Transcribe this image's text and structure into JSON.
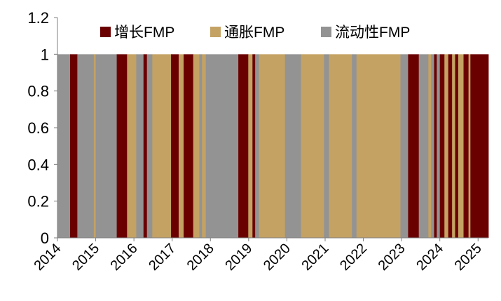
{
  "chart_data": {
    "type": "bar",
    "title": "",
    "xlabel": "",
    "ylabel": "",
    "ylim": [
      0,
      1.2
    ],
    "y_ticks": [
      "0",
      "0.2",
      "0.4",
      "0.6",
      "0.8",
      "1",
      "1.2"
    ],
    "x_range": [
      2014,
      2025.27
    ],
    "x_ticks": [
      "2014",
      "2015",
      "2016",
      "2017",
      "2018",
      "2019",
      "2020",
      "2021",
      "2022",
      "2023",
      "2024",
      "2025"
    ],
    "grid": false,
    "legend_position": "top",
    "legend": [
      {
        "key": "growth",
        "name": "增长FMP",
        "color": "#6b0000"
      },
      {
        "key": "inflation",
        "name": "通胀FMP",
        "color": "#c4a263"
      },
      {
        "key": "liquidity",
        "name": "流动性FMP",
        "color": "#939393"
      }
    ],
    "value": 1,
    "regimes": [
      {
        "start": 2014.0,
        "end": 2014.33,
        "type": "liquidity"
      },
      {
        "start": 2014.33,
        "end": 2014.52,
        "type": "growth"
      },
      {
        "start": 2014.52,
        "end": 2014.95,
        "type": "liquidity"
      },
      {
        "start": 2014.95,
        "end": 2015.0,
        "type": "inflation"
      },
      {
        "start": 2015.0,
        "end": 2015.55,
        "type": "liquidity"
      },
      {
        "start": 2015.55,
        "end": 2015.82,
        "type": "growth"
      },
      {
        "start": 2015.82,
        "end": 2016.06,
        "type": "inflation"
      },
      {
        "start": 2016.06,
        "end": 2016.25,
        "type": "liquidity"
      },
      {
        "start": 2016.25,
        "end": 2016.34,
        "type": "growth"
      },
      {
        "start": 2016.34,
        "end": 2016.48,
        "type": "liquidity"
      },
      {
        "start": 2016.48,
        "end": 2016.97,
        "type": "inflation"
      },
      {
        "start": 2016.97,
        "end": 2017.17,
        "type": "growth"
      },
      {
        "start": 2017.17,
        "end": 2017.3,
        "type": "inflation"
      },
      {
        "start": 2017.3,
        "end": 2017.55,
        "type": "growth"
      },
      {
        "start": 2017.55,
        "end": 2017.71,
        "type": "inflation"
      },
      {
        "start": 2017.71,
        "end": 2017.78,
        "type": "liquidity"
      },
      {
        "start": 2017.78,
        "end": 2017.88,
        "type": "inflation"
      },
      {
        "start": 2017.88,
        "end": 2018.73,
        "type": "liquidity"
      },
      {
        "start": 2018.73,
        "end": 2018.99,
        "type": "growth"
      },
      {
        "start": 2018.99,
        "end": 2019.1,
        "type": "inflation"
      },
      {
        "start": 2019.1,
        "end": 2019.17,
        "type": "growth"
      },
      {
        "start": 2019.17,
        "end": 2019.27,
        "type": "liquidity"
      },
      {
        "start": 2019.27,
        "end": 2019.95,
        "type": "inflation"
      },
      {
        "start": 2019.95,
        "end": 2020.37,
        "type": "liquidity"
      },
      {
        "start": 2020.37,
        "end": 2020.97,
        "type": "inflation"
      },
      {
        "start": 2020.97,
        "end": 2021.1,
        "type": "liquidity"
      },
      {
        "start": 2021.1,
        "end": 2021.7,
        "type": "inflation"
      },
      {
        "start": 2021.7,
        "end": 2021.82,
        "type": "liquidity"
      },
      {
        "start": 2021.82,
        "end": 2022.97,
        "type": "inflation"
      },
      {
        "start": 2022.97,
        "end": 2023.17,
        "type": "liquidity"
      },
      {
        "start": 2023.17,
        "end": 2023.45,
        "type": "growth"
      },
      {
        "start": 2023.45,
        "end": 2023.7,
        "type": "liquidity"
      },
      {
        "start": 2023.7,
        "end": 2023.77,
        "type": "inflation"
      },
      {
        "start": 2023.77,
        "end": 2023.85,
        "type": "liquidity"
      },
      {
        "start": 2023.85,
        "end": 2023.92,
        "type": "growth"
      },
      {
        "start": 2023.92,
        "end": 2024.0,
        "type": "liquidity"
      },
      {
        "start": 2024.0,
        "end": 2024.12,
        "type": "growth"
      },
      {
        "start": 2024.12,
        "end": 2024.22,
        "type": "inflation"
      },
      {
        "start": 2024.22,
        "end": 2024.32,
        "type": "growth"
      },
      {
        "start": 2024.32,
        "end": 2024.4,
        "type": "inflation"
      },
      {
        "start": 2024.4,
        "end": 2024.48,
        "type": "growth"
      },
      {
        "start": 2024.48,
        "end": 2024.62,
        "type": "inflation"
      },
      {
        "start": 2024.62,
        "end": 2024.75,
        "type": "growth"
      },
      {
        "start": 2024.75,
        "end": 2024.8,
        "type": "inflation"
      },
      {
        "start": 2024.8,
        "end": 2025.27,
        "type": "growth"
      }
    ]
  }
}
